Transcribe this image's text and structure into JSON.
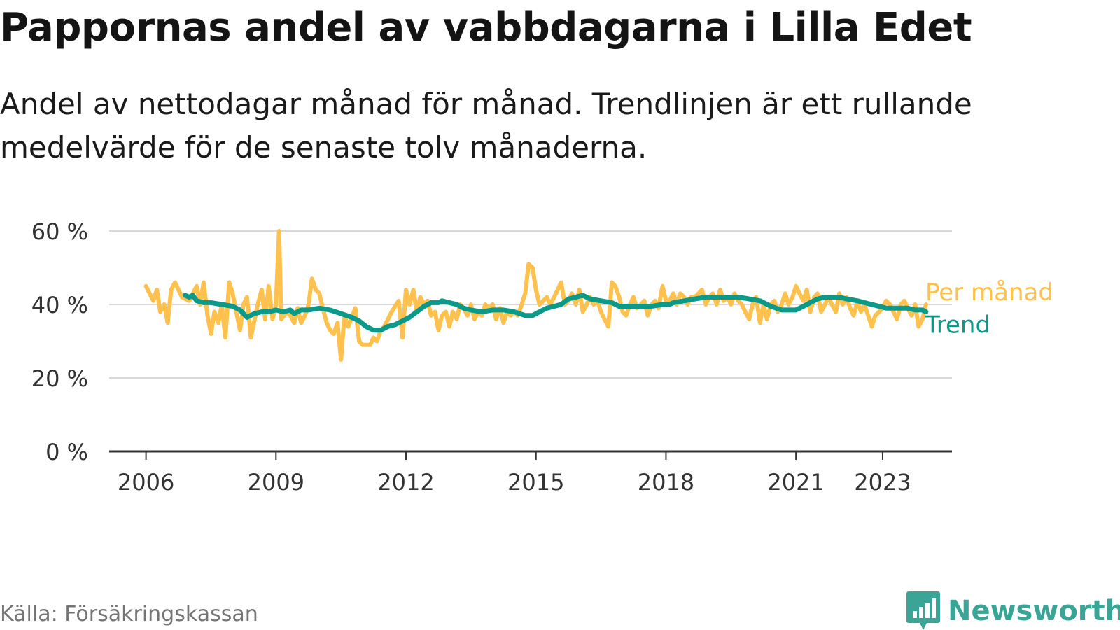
{
  "title": "Pappornas andel av vabbdagarna i Lilla Edet",
  "subtitle": "Andel av nettodagar månad för månad. Trendlinjen är ett rullande medelvärde för de senaste tolv månaderna.",
  "source": "Källa: Försäkringskassan",
  "logo": {
    "text": "Newsworthy",
    "icon": "bar-chart-speech-bubble-icon"
  },
  "colors": {
    "monthly": "#ffc14e",
    "trend": "#0b9a8a",
    "grid": "#d9d9d9",
    "axis": "#333333"
  },
  "chart_data": {
    "type": "line",
    "xlabel": "",
    "ylabel": "",
    "xlim": [
      2005.15,
      2024.6
    ],
    "ylim": [
      0,
      60
    ],
    "x_ticks": [
      {
        "value": 2006,
        "label": "2006"
      },
      {
        "value": 2009,
        "label": "2009"
      },
      {
        "value": 2012,
        "label": "2012"
      },
      {
        "value": 2015,
        "label": "2015"
      },
      {
        "value": 2018,
        "label": "2018"
      },
      {
        "value": 2021,
        "label": "2021"
      },
      {
        "value": 2023,
        "label": "2023"
      }
    ],
    "y_ticks": [
      {
        "value": 0,
        "label": "0 %"
      },
      {
        "value": 20,
        "label": "20 %"
      },
      {
        "value": 40,
        "label": "40 %"
      },
      {
        "value": 60,
        "label": "60 %"
      }
    ],
    "grid": true,
    "legend": "right",
    "series": [
      {
        "name": "Per månad",
        "color": "#ffc14e",
        "points": [
          [
            2006.0,
            45
          ],
          [
            2006.17,
            41
          ],
          [
            2006.25,
            44
          ],
          [
            2006.33,
            38
          ],
          [
            2006.42,
            40
          ],
          [
            2006.5,
            35
          ],
          [
            2006.58,
            44
          ],
          [
            2006.67,
            46
          ],
          [
            2006.83,
            42
          ],
          [
            2007.0,
            41
          ],
          [
            2007.17,
            45
          ],
          [
            2007.25,
            40
          ],
          [
            2007.33,
            46
          ],
          [
            2007.42,
            37
          ],
          [
            2007.5,
            32
          ],
          [
            2007.58,
            38
          ],
          [
            2007.67,
            35
          ],
          [
            2007.75,
            40
          ],
          [
            2007.83,
            31
          ],
          [
            2007.92,
            46
          ],
          [
            2008.0,
            43
          ],
          [
            2008.17,
            33
          ],
          [
            2008.25,
            40
          ],
          [
            2008.33,
            42
          ],
          [
            2008.42,
            31
          ],
          [
            2008.58,
            40
          ],
          [
            2008.67,
            44
          ],
          [
            2008.75,
            36
          ],
          [
            2008.83,
            45
          ],
          [
            2008.92,
            36
          ],
          [
            2009.0,
            40
          ],
          [
            2009.07,
            60
          ],
          [
            2009.12,
            36
          ],
          [
            2009.25,
            38
          ],
          [
            2009.33,
            37
          ],
          [
            2009.42,
            35
          ],
          [
            2009.5,
            39
          ],
          [
            2009.58,
            35
          ],
          [
            2009.67,
            37
          ],
          [
            2009.75,
            40
          ],
          [
            2009.83,
            47
          ],
          [
            2009.92,
            44
          ],
          [
            2010.0,
            43
          ],
          [
            2010.08,
            39
          ],
          [
            2010.17,
            35
          ],
          [
            2010.25,
            33
          ],
          [
            2010.33,
            32
          ],
          [
            2010.42,
            35
          ],
          [
            2010.5,
            25
          ],
          [
            2010.58,
            37
          ],
          [
            2010.67,
            34
          ],
          [
            2010.83,
            39
          ],
          [
            2010.92,
            30
          ],
          [
            2011.0,
            29
          ],
          [
            2011.17,
            29
          ],
          [
            2011.25,
            31
          ],
          [
            2011.33,
            30
          ],
          [
            2011.42,
            33
          ],
          [
            2011.5,
            34
          ],
          [
            2011.67,
            38
          ],
          [
            2011.83,
            41
          ],
          [
            2011.92,
            31
          ],
          [
            2012.0,
            44
          ],
          [
            2012.08,
            40
          ],
          [
            2012.17,
            44
          ],
          [
            2012.25,
            38
          ],
          [
            2012.33,
            42
          ],
          [
            2012.42,
            40
          ],
          [
            2012.5,
            41
          ],
          [
            2012.58,
            37
          ],
          [
            2012.67,
            38
          ],
          [
            2012.75,
            33
          ],
          [
            2012.83,
            37
          ],
          [
            2012.92,
            38
          ],
          [
            2013.0,
            34
          ],
          [
            2013.08,
            38
          ],
          [
            2013.17,
            36
          ],
          [
            2013.25,
            40
          ],
          [
            2013.33,
            39
          ],
          [
            2013.42,
            37
          ],
          [
            2013.5,
            40
          ],
          [
            2013.58,
            36
          ],
          [
            2013.67,
            38
          ],
          [
            2013.75,
            37
          ],
          [
            2013.83,
            40
          ],
          [
            2013.92,
            39
          ],
          [
            2014.0,
            40
          ],
          [
            2014.08,
            36
          ],
          [
            2014.17,
            39
          ],
          [
            2014.25,
            35
          ],
          [
            2014.33,
            38
          ],
          [
            2014.42,
            37
          ],
          [
            2014.5,
            38
          ],
          [
            2014.58,
            37
          ],
          [
            2014.67,
            40
          ],
          [
            2014.75,
            43
          ],
          [
            2014.83,
            51
          ],
          [
            2014.92,
            50
          ],
          [
            2015.0,
            44
          ],
          [
            2015.08,
            40
          ],
          [
            2015.17,
            41
          ],
          [
            2015.25,
            42
          ],
          [
            2015.33,
            40
          ],
          [
            2015.42,
            42
          ],
          [
            2015.5,
            44
          ],
          [
            2015.58,
            46
          ],
          [
            2015.67,
            40
          ],
          [
            2015.75,
            41
          ],
          [
            2015.83,
            43
          ],
          [
            2015.92,
            40
          ],
          [
            2016.0,
            44
          ],
          [
            2016.08,
            38
          ],
          [
            2016.17,
            40
          ],
          [
            2016.25,
            42
          ],
          [
            2016.33,
            40
          ],
          [
            2016.42,
            41
          ],
          [
            2016.5,
            38
          ],
          [
            2016.58,
            36
          ],
          [
            2016.67,
            34
          ],
          [
            2016.75,
            46
          ],
          [
            2016.83,
            45
          ],
          [
            2016.92,
            42
          ],
          [
            2017.0,
            38
          ],
          [
            2017.08,
            37
          ],
          [
            2017.17,
            40
          ],
          [
            2017.25,
            42
          ],
          [
            2017.33,
            39
          ],
          [
            2017.42,
            40
          ],
          [
            2017.5,
            41
          ],
          [
            2017.58,
            37
          ],
          [
            2017.67,
            40
          ],
          [
            2017.75,
            41
          ],
          [
            2017.83,
            39
          ],
          [
            2017.92,
            45
          ],
          [
            2018.0,
            41
          ],
          [
            2018.08,
            41
          ],
          [
            2018.17,
            43
          ],
          [
            2018.25,
            40
          ],
          [
            2018.33,
            43
          ],
          [
            2018.42,
            42
          ],
          [
            2018.5,
            40
          ],
          [
            2018.58,
            42
          ],
          [
            2018.67,
            42
          ],
          [
            2018.75,
            43
          ],
          [
            2018.83,
            44
          ],
          [
            2018.92,
            40
          ],
          [
            2019.0,
            42
          ],
          [
            2019.08,
            43
          ],
          [
            2019.17,
            40
          ],
          [
            2019.25,
            44
          ],
          [
            2019.33,
            41
          ],
          [
            2019.42,
            42
          ],
          [
            2019.5,
            40
          ],
          [
            2019.58,
            43
          ],
          [
            2019.67,
            41
          ],
          [
            2019.75,
            40
          ],
          [
            2019.83,
            38
          ],
          [
            2019.92,
            36
          ],
          [
            2020.0,
            40
          ],
          [
            2020.08,
            42
          ],
          [
            2020.17,
            35
          ],
          [
            2020.25,
            40
          ],
          [
            2020.33,
            36
          ],
          [
            2020.42,
            40
          ],
          [
            2020.5,
            41
          ],
          [
            2020.58,
            38
          ],
          [
            2020.67,
            40
          ],
          [
            2020.75,
            43
          ],
          [
            2020.83,
            40
          ],
          [
            2020.92,
            42
          ],
          [
            2021.0,
            45
          ],
          [
            2021.08,
            43
          ],
          [
            2021.17,
            41
          ],
          [
            2021.25,
            44
          ],
          [
            2021.33,
            38
          ],
          [
            2021.42,
            42
          ],
          [
            2021.5,
            43
          ],
          [
            2021.58,
            38
          ],
          [
            2021.67,
            40
          ],
          [
            2021.75,
            42
          ],
          [
            2021.83,
            40
          ],
          [
            2021.92,
            38
          ],
          [
            2022.0,
            43
          ],
          [
            2022.08,
            40
          ],
          [
            2022.17,
            42
          ],
          [
            2022.25,
            39
          ],
          [
            2022.33,
            37
          ],
          [
            2022.42,
            41
          ],
          [
            2022.5,
            38
          ],
          [
            2022.58,
            40
          ],
          [
            2022.75,
            34
          ],
          [
            2022.83,
            37
          ],
          [
            2022.92,
            38
          ],
          [
            2023.0,
            39
          ],
          [
            2023.08,
            41
          ],
          [
            2023.17,
            40
          ],
          [
            2023.25,
            38
          ],
          [
            2023.33,
            36
          ],
          [
            2023.42,
            40
          ],
          [
            2023.5,
            41
          ],
          [
            2023.58,
            39
          ],
          [
            2023.67,
            37
          ],
          [
            2023.75,
            40
          ],
          [
            2023.83,
            34
          ],
          [
            2023.92,
            36
          ],
          [
            2024.0,
            40
          ]
        ]
      },
      {
        "name": "Trend",
        "color": "#0b9a8a",
        "points": [
          [
            2006.9,
            42.5
          ],
          [
            2007.0,
            42
          ],
          [
            2007.08,
            42.5
          ],
          [
            2007.17,
            41
          ],
          [
            2007.33,
            40.5
          ],
          [
            2007.5,
            40.5
          ],
          [
            2007.75,
            40
          ],
          [
            2008.0,
            39.5
          ],
          [
            2008.17,
            38.5
          ],
          [
            2008.33,
            36.5
          ],
          [
            2008.5,
            37.5
          ],
          [
            2008.67,
            38
          ],
          [
            2008.83,
            38
          ],
          [
            2009.0,
            38.5
          ],
          [
            2009.17,
            38
          ],
          [
            2009.33,
            38.5
          ],
          [
            2009.42,
            37.5
          ],
          [
            2009.58,
            38.5
          ],
          [
            2009.75,
            38.5
          ],
          [
            2010.0,
            39
          ],
          [
            2010.25,
            38.5
          ],
          [
            2010.5,
            37.5
          ],
          [
            2010.75,
            36.5
          ],
          [
            2010.92,
            35.5
          ],
          [
            2011.08,
            34
          ],
          [
            2011.25,
            33
          ],
          [
            2011.42,
            33
          ],
          [
            2011.58,
            34
          ],
          [
            2011.75,
            34.5
          ],
          [
            2011.92,
            35.5
          ],
          [
            2012.08,
            36.5
          ],
          [
            2012.25,
            38
          ],
          [
            2012.42,
            39.5
          ],
          [
            2012.58,
            40.5
          ],
          [
            2012.75,
            40.5
          ],
          [
            2012.83,
            41
          ],
          [
            2013.0,
            40.5
          ],
          [
            2013.17,
            40
          ],
          [
            2013.33,
            39
          ],
          [
            2013.5,
            38.5
          ],
          [
            2013.75,
            38
          ],
          [
            2014.0,
            38.5
          ],
          [
            2014.25,
            38.5
          ],
          [
            2014.5,
            38
          ],
          [
            2014.75,
            37
          ],
          [
            2014.92,
            37
          ],
          [
            2015.08,
            38
          ],
          [
            2015.25,
            39
          ],
          [
            2015.42,
            39.5
          ],
          [
            2015.58,
            40
          ],
          [
            2015.75,
            41.5
          ],
          [
            2015.92,
            42
          ],
          [
            2016.08,
            42.5
          ],
          [
            2016.25,
            41.5
          ],
          [
            2016.5,
            41
          ],
          [
            2016.75,
            40.5
          ],
          [
            2016.92,
            39.5
          ],
          [
            2017.08,
            39.5
          ],
          [
            2017.33,
            39.5
          ],
          [
            2017.5,
            39.5
          ],
          [
            2017.67,
            39.5
          ],
          [
            2017.92,
            40
          ],
          [
            2018.08,
            40
          ],
          [
            2018.17,
            40.5
          ],
          [
            2018.42,
            41
          ],
          [
            2018.67,
            41.5
          ],
          [
            2018.92,
            42
          ],
          [
            2019.17,
            42
          ],
          [
            2019.42,
            42
          ],
          [
            2019.67,
            42
          ],
          [
            2019.92,
            41.5
          ],
          [
            2020.17,
            41
          ],
          [
            2020.42,
            39.5
          ],
          [
            2020.67,
            38.5
          ],
          [
            2020.83,
            38.5
          ],
          [
            2021.0,
            38.5
          ],
          [
            2021.17,
            39.5
          ],
          [
            2021.33,
            40.5
          ],
          [
            2021.5,
            41.5
          ],
          [
            2021.67,
            42
          ],
          [
            2021.83,
            42
          ],
          [
            2022.0,
            42
          ],
          [
            2022.17,
            41.5
          ],
          [
            2022.42,
            41
          ],
          [
            2022.58,
            40.5
          ],
          [
            2022.75,
            40
          ],
          [
            2022.92,
            39.5
          ],
          [
            2023.08,
            39
          ],
          [
            2023.25,
            39
          ],
          [
            2023.42,
            39
          ],
          [
            2023.58,
            39
          ],
          [
            2023.75,
            38.5
          ],
          [
            2023.92,
            38.5
          ],
          [
            2024.0,
            38
          ]
        ]
      }
    ]
  }
}
